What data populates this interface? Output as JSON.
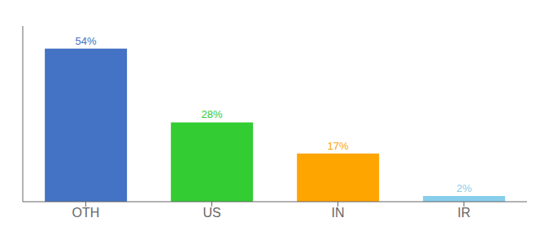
{
  "chart_data": {
    "type": "bar",
    "categories": [
      "OTH",
      "US",
      "IN",
      "IR"
    ],
    "values": [
      54,
      28,
      17,
      2
    ],
    "value_labels": [
      "54%",
      "28%",
      "17%",
      "2%"
    ],
    "colors": [
      "#4472C4",
      "#33CC33",
      "#FFA500",
      "#87CEEB"
    ],
    "ylim": [
      0,
      62
    ],
    "data_labels": true,
    "tick_labels": "x",
    "grid": false
  }
}
